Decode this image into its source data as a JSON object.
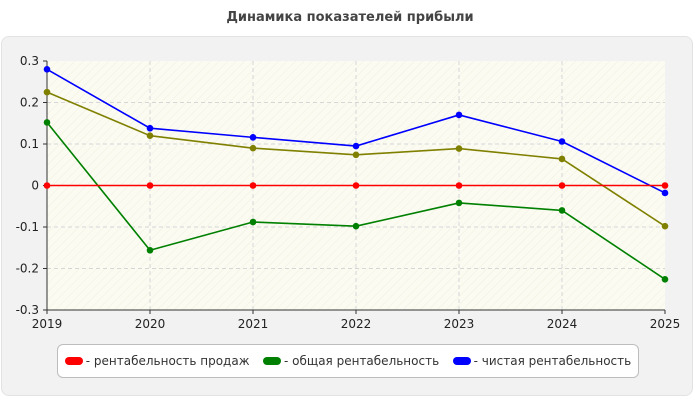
{
  "chart_data": {
    "type": "line",
    "title": "Динамика показателей прибыли",
    "x": [
      "2019",
      "2020",
      "2021",
      "2022",
      "2023",
      "2024",
      "2025"
    ],
    "ylim": [
      -0.3,
      0.3
    ],
    "yticks": [
      "0.3",
      "0.2",
      "0.1",
      "0",
      "-0.1",
      "-0.2",
      "-0.3"
    ],
    "grid": true,
    "legend_position": "bottom",
    "series": [
      {
        "name": "- рентабельность продаж",
        "color": "#ff0000",
        "values": [
          0,
          0,
          0,
          0,
          0,
          0,
          0
        ]
      },
      {
        "name": "- общая рентабельность",
        "color": "#008000",
        "values": [
          0.152,
          -0.156,
          -0.088,
          -0.098,
          -0.042,
          -0.06,
          -0.226
        ]
      },
      {
        "name": "- чистая рентабельность",
        "color": "#0000ff",
        "values": [
          0.28,
          0.138,
          0.116,
          0.095,
          0.17,
          0.106,
          -0.018
        ]
      },
      {
        "name": "",
        "color": "#808000",
        "values": [
          0.225,
          0.12,
          0.09,
          0.074,
          0.089,
          0.064,
          -0.098
        ]
      }
    ]
  }
}
